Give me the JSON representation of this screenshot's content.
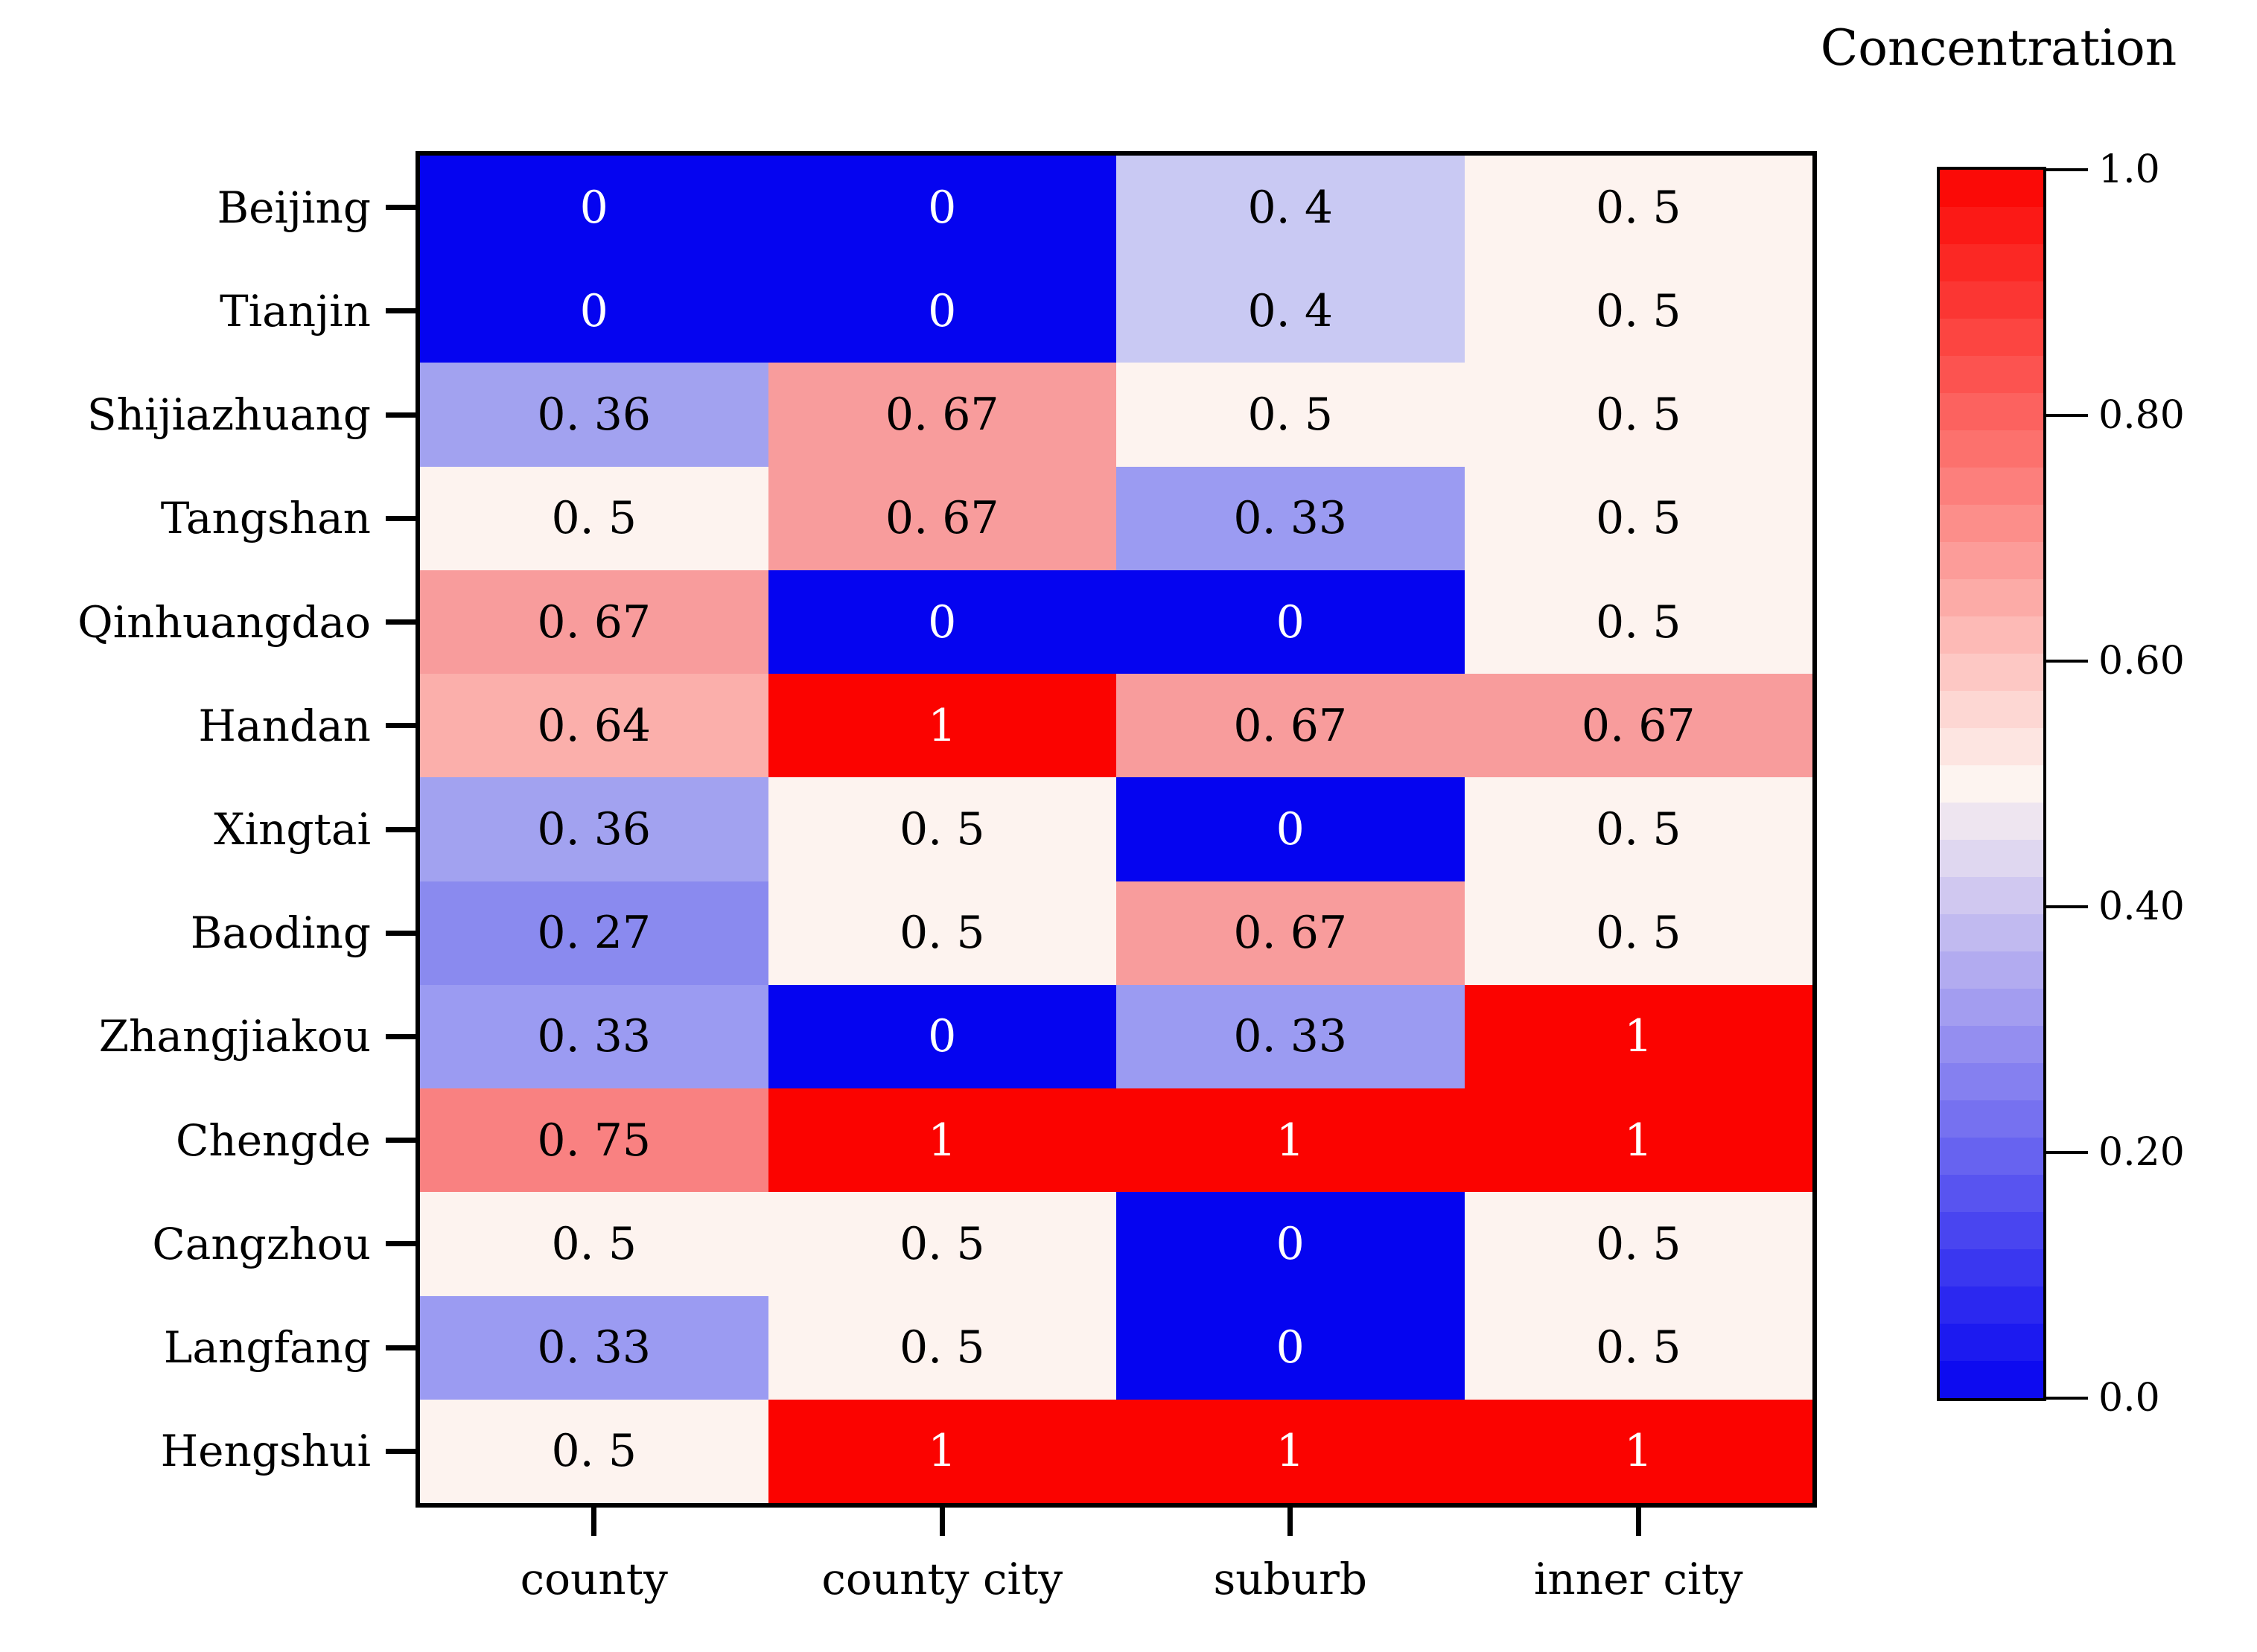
{
  "title": "Concentration",
  "chart_data": {
    "type": "heatmap",
    "title": "Concentration",
    "columns": [
      "county",
      "county city",
      "suburb",
      "inner city"
    ],
    "rows": [
      {
        "name": "Beijing",
        "values": [
          0,
          0,
          0.4,
          0.5
        ],
        "labels": [
          "0",
          "0",
          "0. 4",
          "0. 5"
        ]
      },
      {
        "name": "Tianjin",
        "values": [
          0,
          0,
          0.4,
          0.5
        ],
        "labels": [
          "0",
          "0",
          "0. 4",
          "0. 5"
        ]
      },
      {
        "name": "Shijiazhuang",
        "values": [
          0.36,
          0.67,
          0.5,
          0.5
        ],
        "labels": [
          "0. 36",
          "0. 67",
          "0. 5",
          "0. 5"
        ]
      },
      {
        "name": "Tangshan",
        "values": [
          0.5,
          0.67,
          0.33,
          0.5
        ],
        "labels": [
          "0. 5",
          "0. 67",
          "0. 33",
          "0. 5"
        ]
      },
      {
        "name": "Qinhuangdao",
        "values": [
          0.67,
          0,
          0,
          0.5
        ],
        "labels": [
          "0. 67",
          "0",
          "0",
          "0. 5"
        ]
      },
      {
        "name": "Handan",
        "values": [
          0.64,
          1,
          0.67,
          0.67
        ],
        "labels": [
          "0. 64",
          "1",
          "0. 67",
          "0. 67"
        ]
      },
      {
        "name": "Xingtai",
        "values": [
          0.36,
          0.5,
          0,
          0.5
        ],
        "labels": [
          "0. 36",
          "0. 5",
          "0",
          "0. 5"
        ]
      },
      {
        "name": "Baoding",
        "values": [
          0.27,
          0.5,
          0.67,
          0.5
        ],
        "labels": [
          "0. 27",
          "0. 5",
          "0. 67",
          "0. 5"
        ]
      },
      {
        "name": "Zhangjiakou",
        "values": [
          0.33,
          0,
          0.33,
          1
        ],
        "labels": [
          "0. 33",
          "0",
          "0. 33",
          "1"
        ]
      },
      {
        "name": "Chengde",
        "values": [
          0.75,
          1,
          1,
          1
        ],
        "labels": [
          "0. 75",
          "1",
          "1",
          "1"
        ]
      },
      {
        "name": "Cangzhou",
        "values": [
          0.5,
          0.5,
          0,
          0.5
        ],
        "labels": [
          "0. 5",
          "0. 5",
          "0",
          "0. 5"
        ]
      },
      {
        "name": "Langfang",
        "values": [
          0.33,
          0.5,
          0,
          0.5
        ],
        "labels": [
          "0. 33",
          "0. 5",
          "0",
          "0. 5"
        ]
      },
      {
        "name": "Hengshui",
        "values": [
          0.5,
          1,
          1,
          1
        ],
        "labels": [
          "0. 5",
          "1",
          "1",
          "1"
        ]
      }
    ],
    "value_colors": {
      "0": "#0504f0",
      "0.27": "#8a8aef",
      "0.33": "#9b9bf2",
      "0.36": "#a2a2f0",
      "0.4": "#c9c9f3",
      "0.5": "#fdf3ef",
      "0.64": "#fbafab",
      "0.67": "#f89c9c",
      "0.75": "#f98181",
      "1": "#fb0300"
    },
    "cell_text_dark": "#000000",
    "cell_text_light": "#ffffff",
    "colorbar": {
      "title": "Concentration",
      "min": 0,
      "max": 1,
      "steps": 33,
      "gradient_low": "#0504f0",
      "gradient_mid": "#fdf4f0",
      "gradient_high": "#fb0300",
      "ticks": [
        {
          "label": "1.0",
          "value": 1.0
        },
        {
          "label": "0.80",
          "value": 0.8
        },
        {
          "label": "0.60",
          "value": 0.6
        },
        {
          "label": "0.40",
          "value": 0.4
        },
        {
          "label": "0.20",
          "value": 0.2
        },
        {
          "label": "0.0",
          "value": 0.0
        }
      ]
    },
    "grid": false,
    "legend_position": "right"
  }
}
